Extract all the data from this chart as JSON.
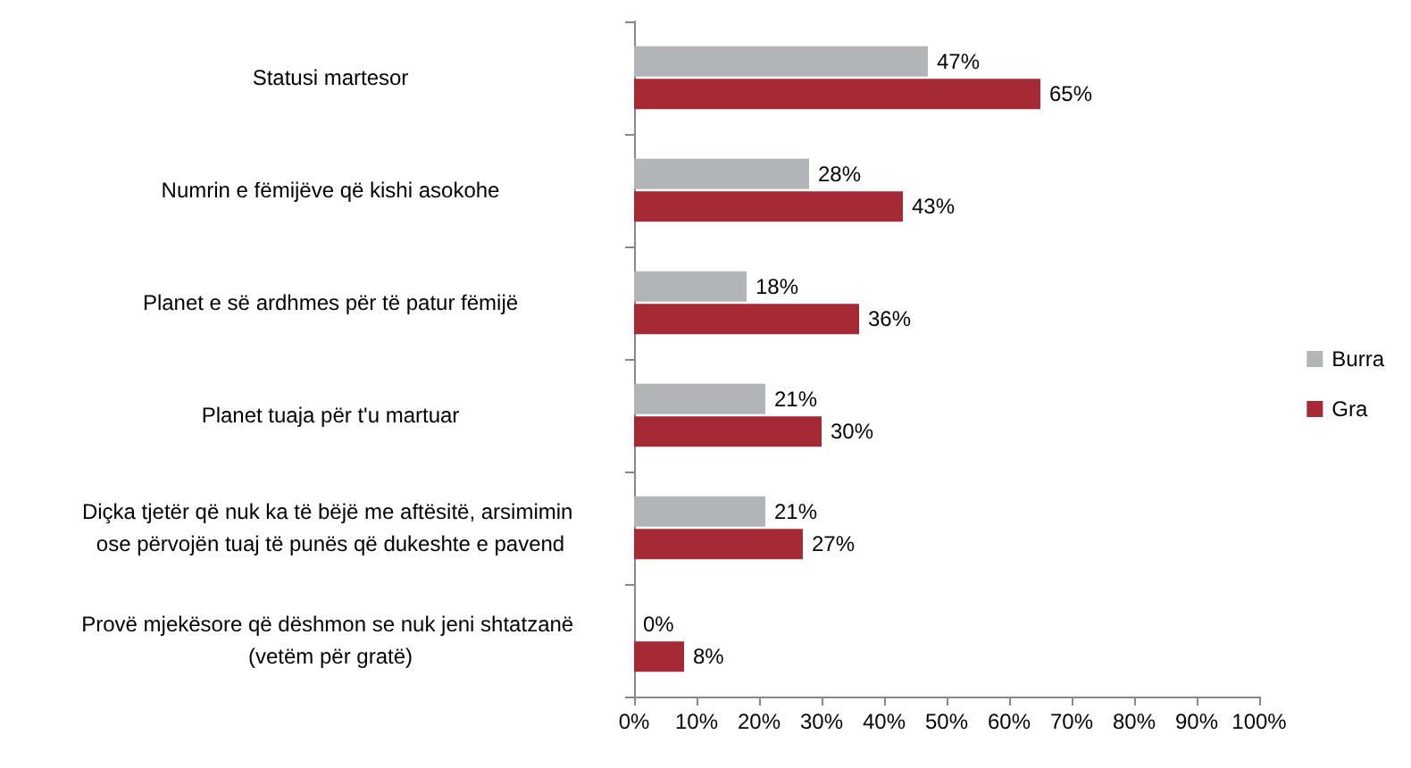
{
  "chart_data": {
    "type": "bar",
    "orientation": "horizontal",
    "categories": [
      "Statusi martesor",
      "Numrin e fëmijëve që kishi asokohe",
      "Planet e së ardhmes për të patur fëmijë",
      "Planet tuaja për t'u martuar",
      "Diçka tjetër që nuk ka të bëjë me aftësitë, arsimimin ose përvojën tuaj të punës që dukeshte e pavend",
      "Provë mjekësore që dëshmon se nuk jeni shtatzanë (vetëm për gratë)"
    ],
    "series": [
      {
        "name": "Burra",
        "color": "#b2b5b8",
        "values": [
          47,
          28,
          18,
          21,
          21,
          0
        ],
        "value_labels": [
          "47%",
          "28%",
          "18%",
          "21%",
          "21%",
          "0%"
        ]
      },
      {
        "name": "Gra",
        "color": "#a52a36",
        "values": [
          65,
          43,
          36,
          30,
          27,
          8
        ],
        "value_labels": [
          "65%",
          "43%",
          "36%",
          "30%",
          "27%",
          "8%"
        ]
      }
    ],
    "xlim": [
      0,
      100
    ],
    "xticks": [
      {
        "value": 0,
        "label": "0%"
      },
      {
        "value": 10,
        "label": "10%"
      },
      {
        "value": 20,
        "label": "20%"
      },
      {
        "value": 30,
        "label": "30%"
      },
      {
        "value": 40,
        "label": "40%"
      },
      {
        "value": 50,
        "label": "50%"
      },
      {
        "value": 60,
        "label": "60%"
      },
      {
        "value": 70,
        "label": "70%"
      },
      {
        "value": 80,
        "label": "80%"
      },
      {
        "value": 90,
        "label": "90%"
      },
      {
        "value": 100,
        "label": "100%"
      }
    ],
    "grid": false,
    "legend": "right"
  }
}
